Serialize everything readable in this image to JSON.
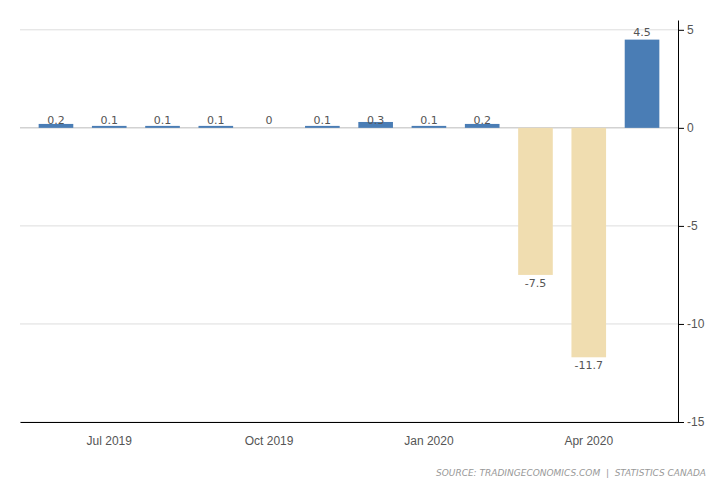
{
  "chart_data": {
    "type": "bar",
    "categories": [
      null,
      "Jul 2019",
      null,
      null,
      "Oct 2019",
      null,
      null,
      "Jan 2020",
      null,
      null,
      "Apr 2020",
      null
    ],
    "values": [
      0.2,
      0.1,
      0.1,
      0.1,
      0.0,
      0.1,
      0.3,
      0.1,
      0.2,
      -7.5,
      -11.7,
      4.5
    ],
    "colors": [
      "#4a7db5",
      "#4a7db5",
      "#4a7db5",
      "#4a7db5",
      "#4a7db5",
      "#4a7db5",
      "#4a7db5",
      "#4a7db5",
      "#4a7db5",
      "#f0ddb0",
      "#f0ddb0",
      "#4a7db5"
    ],
    "ylim": [
      -15,
      5.5
    ],
    "yticks": [
      -15,
      -10,
      -5,
      0,
      5
    ],
    "grid": true,
    "data_labels": true,
    "annotations": [
      "SOURCE: TRADINGECONOMICS.COM  |  STATISTICS CANADA"
    ]
  }
}
